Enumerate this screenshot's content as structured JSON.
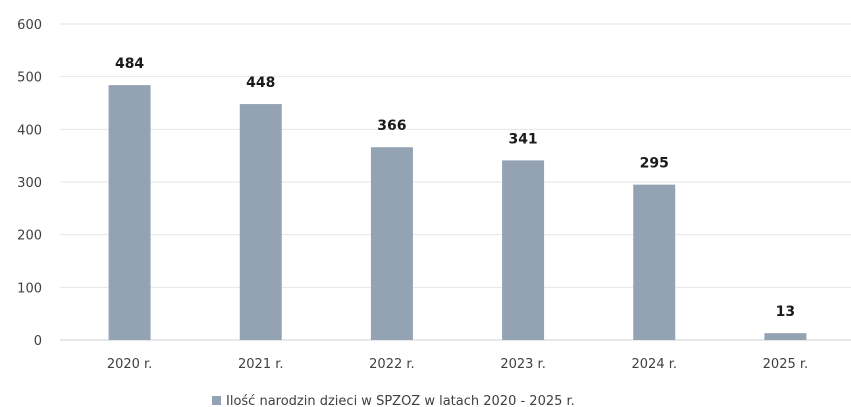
{
  "chart_data": {
    "type": "bar",
    "categories": [
      "2020 r.",
      "2021 r.",
      "2022 r.",
      "2023 r.",
      "2024 r.",
      "2025 r."
    ],
    "series": [
      {
        "name": "Ilość narodzin dzieci w SPZOZ w latach 2020 - 2025 r.",
        "values": [
          484,
          448,
          366,
          341,
          295,
          13
        ]
      }
    ],
    "data_labels": [
      "484",
      "448",
      "366",
      "341",
      "295",
      "13"
    ],
    "yticks": [
      "0",
      "100",
      "200",
      "300",
      "400",
      "500",
      "600"
    ],
    "ylim": [
      0,
      600
    ],
    "grid": true,
    "legend": "bottom",
    "colors": {
      "bar": "#93a3b3",
      "grid": "#e6e6e6"
    }
  }
}
